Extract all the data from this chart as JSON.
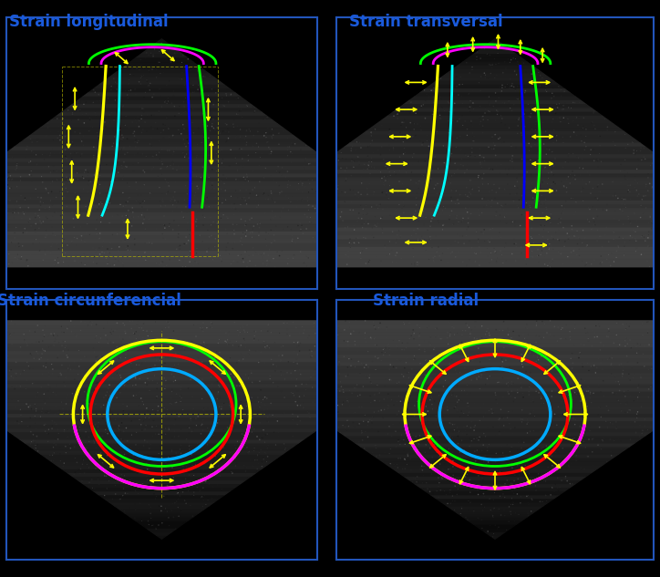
{
  "title_longitudinal": "Strain longitudinal",
  "title_transversal": "Strain transversal",
  "title_circunferencial": "Strain circunferencial",
  "title_radial": "Strain radial",
  "title_color": "#1a5adc",
  "title_fontsize": 12,
  "background_color": "#000000",
  "panel_border_color": "#2255bb",
  "panel_border_lw": 1.5,
  "arrow_color": "#ffff00",
  "arrow_lw": 1.2,
  "curve_lw": 2.0
}
